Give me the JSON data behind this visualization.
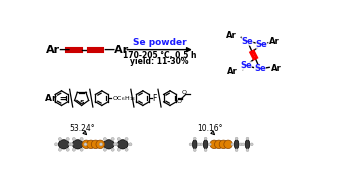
{
  "bg_color": "#ffffff",
  "triple_bond_color": "#cc0000",
  "se_label_color": "#1a1aff",
  "condition_line1": "Se powder",
  "condition_line2": "170-205 °C, 0.5 h",
  "condition_line3": "yield: 11-30%",
  "angle1": "53.24°",
  "angle2": "10.16°",
  "se_atom_color": "#e08000",
  "c_atom_color": "#404040",
  "h_atom_color": "#bbbbbb",
  "bond_color": "#222222"
}
